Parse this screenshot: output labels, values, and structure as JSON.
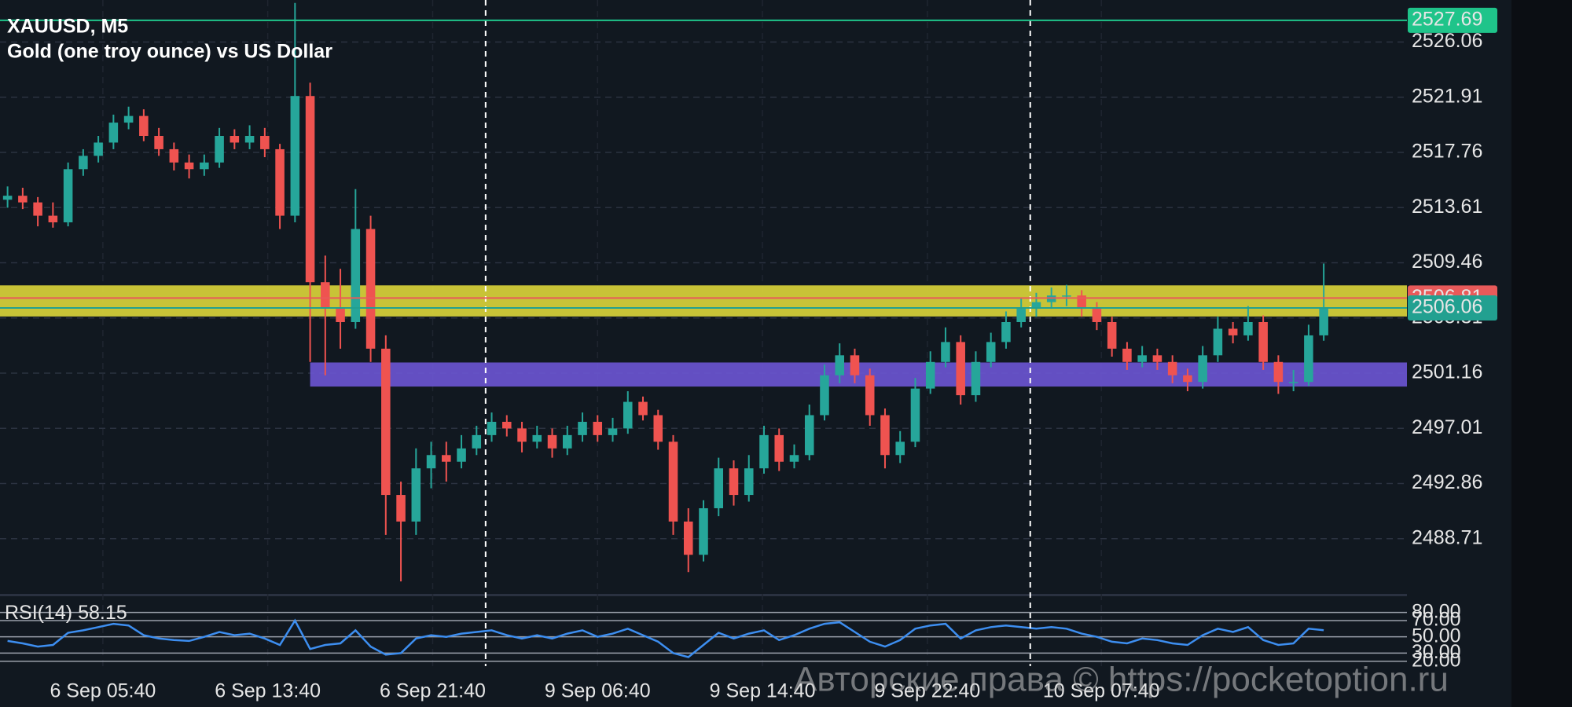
{
  "chart_data": {
    "type": "candlestick",
    "title": "XAUUSD, M5",
    "subtitle": "Gold (one troy ounce) vs US Dollar",
    "watermark": "Авторские права © https://pocketoption.ru",
    "up_color": "#26a69a",
    "down_color": "#ef5350",
    "grid": true,
    "xlim": [
      0,
      93
    ],
    "xticks": [
      {
        "value": 6.8,
        "label": "6 Sep 05:40"
      },
      {
        "value": 17.7,
        "label": "6 Sep 13:40"
      },
      {
        "value": 28.6,
        "label": "6 Sep 21:40"
      },
      {
        "value": 39.5,
        "label": "9 Sep 06:40"
      },
      {
        "value": 50.4,
        "label": "9 Sep 14:40"
      },
      {
        "value": 61.3,
        "label": "9 Sep 22:40"
      },
      {
        "value": 72.8,
        "label": "10 Sep 07:40"
      }
    ],
    "vlines": [
      32.1,
      68.1
    ],
    "ylim": [
      2484.56,
      2529.22
    ],
    "yticks": [
      2526.06,
      2521.91,
      2517.76,
      2513.61,
      2509.46,
      2505.31,
      2501.16,
      2497.01,
      2492.86,
      2488.71
    ],
    "levels": [
      {
        "value": 2527.69,
        "color": "#1fc48a"
      },
      {
        "value": 2506.81,
        "color": "#e85a5a"
      },
      {
        "value": 2506.06,
        "color": "#22a090"
      }
    ],
    "zones": [
      {
        "from": 2505.42,
        "to": 2507.76,
        "start": 0,
        "color": "#d8d23a"
      },
      {
        "from": 2500.15,
        "to": 2501.96,
        "start": 20.5,
        "color": "#6a55d0"
      }
    ],
    "candles": [
      [
        2514.2,
        2515.2,
        2513.6,
        2514.5
      ],
      [
        2514.5,
        2515.1,
        2513.5,
        2514
      ],
      [
        2514,
        2514.4,
        2512.2,
        2513
      ],
      [
        2513,
        2514,
        2512.1,
        2512.5
      ],
      [
        2512.5,
        2517,
        2512.2,
        2516.5
      ],
      [
        2516.5,
        2518,
        2516,
        2517.5
      ],
      [
        2517.5,
        2519,
        2517,
        2518.5
      ],
      [
        2518.5,
        2520.6,
        2518,
        2520
      ],
      [
        2520,
        2521.2,
        2519.5,
        2520.5
      ],
      [
        2520.5,
        2521,
        2518.6,
        2519
      ],
      [
        2519,
        2519.6,
        2517.5,
        2518
      ],
      [
        2518,
        2518.5,
        2516.4,
        2517
      ],
      [
        2517,
        2517.6,
        2515.8,
        2516.5
      ],
      [
        2516.5,
        2517.6,
        2516,
        2517
      ],
      [
        2517,
        2519.6,
        2516.6,
        2519
      ],
      [
        2519,
        2519.5,
        2518,
        2518.5
      ],
      [
        2518.5,
        2519.8,
        2518,
        2519
      ],
      [
        2519,
        2519.6,
        2517.4,
        2518
      ],
      [
        2518,
        2518.4,
        2512,
        2513
      ],
      [
        2513,
        2529,
        2512.5,
        2522
      ],
      [
        2522,
        2523,
        2502,
        2508
      ],
      [
        2508,
        2510,
        2501,
        2506
      ],
      [
        2506,
        2509,
        2503,
        2505
      ],
      [
        2505,
        2515,
        2504.5,
        2512
      ],
      [
        2512,
        2513,
        2502,
        2503
      ],
      [
        2503,
        2504,
        2489,
        2492
      ],
      [
        2492,
        2493,
        2485.5,
        2490
      ],
      [
        2490,
        2495.5,
        2489,
        2494
      ],
      [
        2494,
        2496,
        2492.5,
        2495
      ],
      [
        2495,
        2496,
        2493,
        2494.5
      ],
      [
        2494.5,
        2496.5,
        2494,
        2495.5
      ],
      [
        2495.5,
        2497.2,
        2495,
        2496.5
      ],
      [
        2496.5,
        2498.2,
        2496,
        2497.5
      ],
      [
        2497.5,
        2498,
        2496.4,
        2497
      ],
      [
        2497,
        2497.5,
        2495.2,
        2496
      ],
      [
        2496,
        2497.2,
        2495.5,
        2496.5
      ],
      [
        2496.5,
        2497,
        2494.8,
        2495.5
      ],
      [
        2495.5,
        2497.2,
        2495,
        2496.5
      ],
      [
        2496.5,
        2498.2,
        2496,
        2497.5
      ],
      [
        2497.5,
        2498,
        2496,
        2496.5
      ],
      [
        2496.5,
        2497.8,
        2496,
        2497
      ],
      [
        2497,
        2499.8,
        2496.6,
        2499
      ],
      [
        2499,
        2499.4,
        2497.6,
        2498
      ],
      [
        2498,
        2498.4,
        2495.4,
        2496
      ],
      [
        2496,
        2496.5,
        2489,
        2490
      ],
      [
        2490,
        2491,
        2486.2,
        2487.5
      ],
      [
        2487.5,
        2491.6,
        2487,
        2491
      ],
      [
        2491,
        2494.8,
        2490.4,
        2494
      ],
      [
        2494,
        2494.6,
        2491.2,
        2492
      ],
      [
        2492,
        2495,
        2491.5,
        2494
      ],
      [
        2494,
        2497.2,
        2493.6,
        2496.5
      ],
      [
        2496.5,
        2497,
        2493.8,
        2494.5
      ],
      [
        2494.5,
        2495.8,
        2494,
        2495
      ],
      [
        2495,
        2498.8,
        2494.6,
        2498
      ],
      [
        2498,
        2501.8,
        2497.6,
        2501
      ],
      [
        2501,
        2503.4,
        2500.4,
        2502.5
      ],
      [
        2502.5,
        2503,
        2500.4,
        2501
      ],
      [
        2501,
        2501.5,
        2497.2,
        2498
      ],
      [
        2498,
        2498.5,
        2494,
        2495
      ],
      [
        2495,
        2496.8,
        2494.4,
        2496
      ],
      [
        2496,
        2500.8,
        2495.6,
        2500
      ],
      [
        2500,
        2502.8,
        2499.6,
        2502
      ],
      [
        2502,
        2504.6,
        2501.6,
        2503.5
      ],
      [
        2503.5,
        2504,
        2498.8,
        2499.5
      ],
      [
        2499.5,
        2502.8,
        2499,
        2502
      ],
      [
        2502,
        2504.2,
        2501.6,
        2503.5
      ],
      [
        2503.5,
        2505.8,
        2503,
        2505
      ],
      [
        2505,
        2506.8,
        2504.6,
        2506
      ],
      [
        2506,
        2507.2,
        2505.4,
        2506.5
      ],
      [
        2506.5,
        2507.6,
        2506,
        2507
      ],
      [
        2507,
        2507.8,
        2506.2,
        2507
      ],
      [
        2507,
        2507.4,
        2505.4,
        2506
      ],
      [
        2506,
        2506.5,
        2504.4,
        2505
      ],
      [
        2505,
        2505.4,
        2502.4,
        2503
      ],
      [
        2503,
        2503.5,
        2501.4,
        2502
      ],
      [
        2502,
        2503.2,
        2501.6,
        2502.5
      ],
      [
        2502.5,
        2503,
        2501.4,
        2502
      ],
      [
        2502,
        2502.5,
        2500.4,
        2501
      ],
      [
        2501,
        2501.5,
        2499.8,
        2500.5
      ],
      [
        2500.5,
        2503.2,
        2500,
        2502.5
      ],
      [
        2502.5,
        2505.4,
        2502,
        2504.5
      ],
      [
        2504.5,
        2505,
        2503.4,
        2504
      ],
      [
        2504,
        2506.2,
        2503.6,
        2505
      ],
      [
        2505,
        2505.5,
        2501.4,
        2502
      ],
      [
        2502,
        2502.5,
        2499.6,
        2500.5
      ],
      [
        2500.5,
        2501.4,
        2499.8,
        2500.5
      ],
      [
        2500.5,
        2504.8,
        2500.2,
        2504
      ],
      [
        2504,
        2509.4,
        2503.6,
        2506.06
      ]
    ],
    "rsi": {
      "name": "RSI(14)",
      "color": "#3d8ef0",
      "ylim": [
        13.9,
        97.1
      ],
      "yticks": [
        {
          "value": 80,
          "label": "80.00"
        },
        {
          "value": 70,
          "label": "70.00"
        },
        {
          "value": 50,
          "label": "50.00"
        },
        {
          "value": 30,
          "label": "30.00"
        },
        {
          "value": 20,
          "label": "20.00"
        }
      ],
      "values": [
        45,
        42,
        38,
        40,
        55,
        58,
        62,
        66,
        64,
        52,
        48,
        46,
        45,
        50,
        56,
        52,
        54,
        48,
        40,
        70,
        35,
        40,
        42,
        58,
        38,
        28,
        30,
        48,
        52,
        50,
        54,
        56,
        58,
        52,
        48,
        52,
        48,
        54,
        58,
        50,
        54,
        60,
        52,
        44,
        30,
        25,
        40,
        55,
        48,
        54,
        58,
        46,
        52,
        60,
        66,
        68,
        56,
        44,
        38,
        46,
        60,
        64,
        66,
        48,
        58,
        62,
        64,
        62,
        60,
        62,
        60,
        54,
        50,
        44,
        42,
        48,
        46,
        42,
        40,
        52,
        60,
        56,
        62,
        46,
        40,
        42,
        60,
        58.15
      ]
    }
  }
}
